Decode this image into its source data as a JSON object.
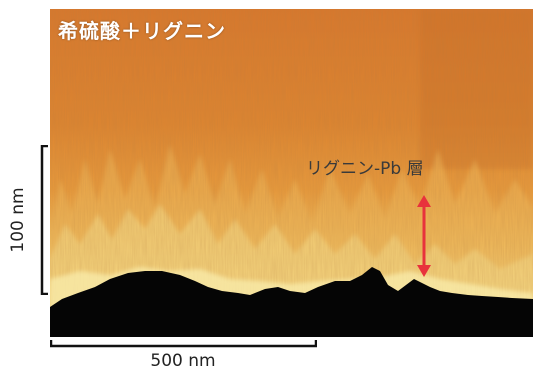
{
  "image": {
    "title": "希硫酸＋リグニン",
    "layer_label": "リグニン-Pb 層",
    "scale_vertical": "100 nm",
    "scale_horizontal": "500 nm",
    "colors": {
      "top": "#d8782a",
      "middle": "#e8a040",
      "layer": "#f5e08a",
      "substrate": "#050505",
      "arrow": "#e8323c"
    }
  }
}
